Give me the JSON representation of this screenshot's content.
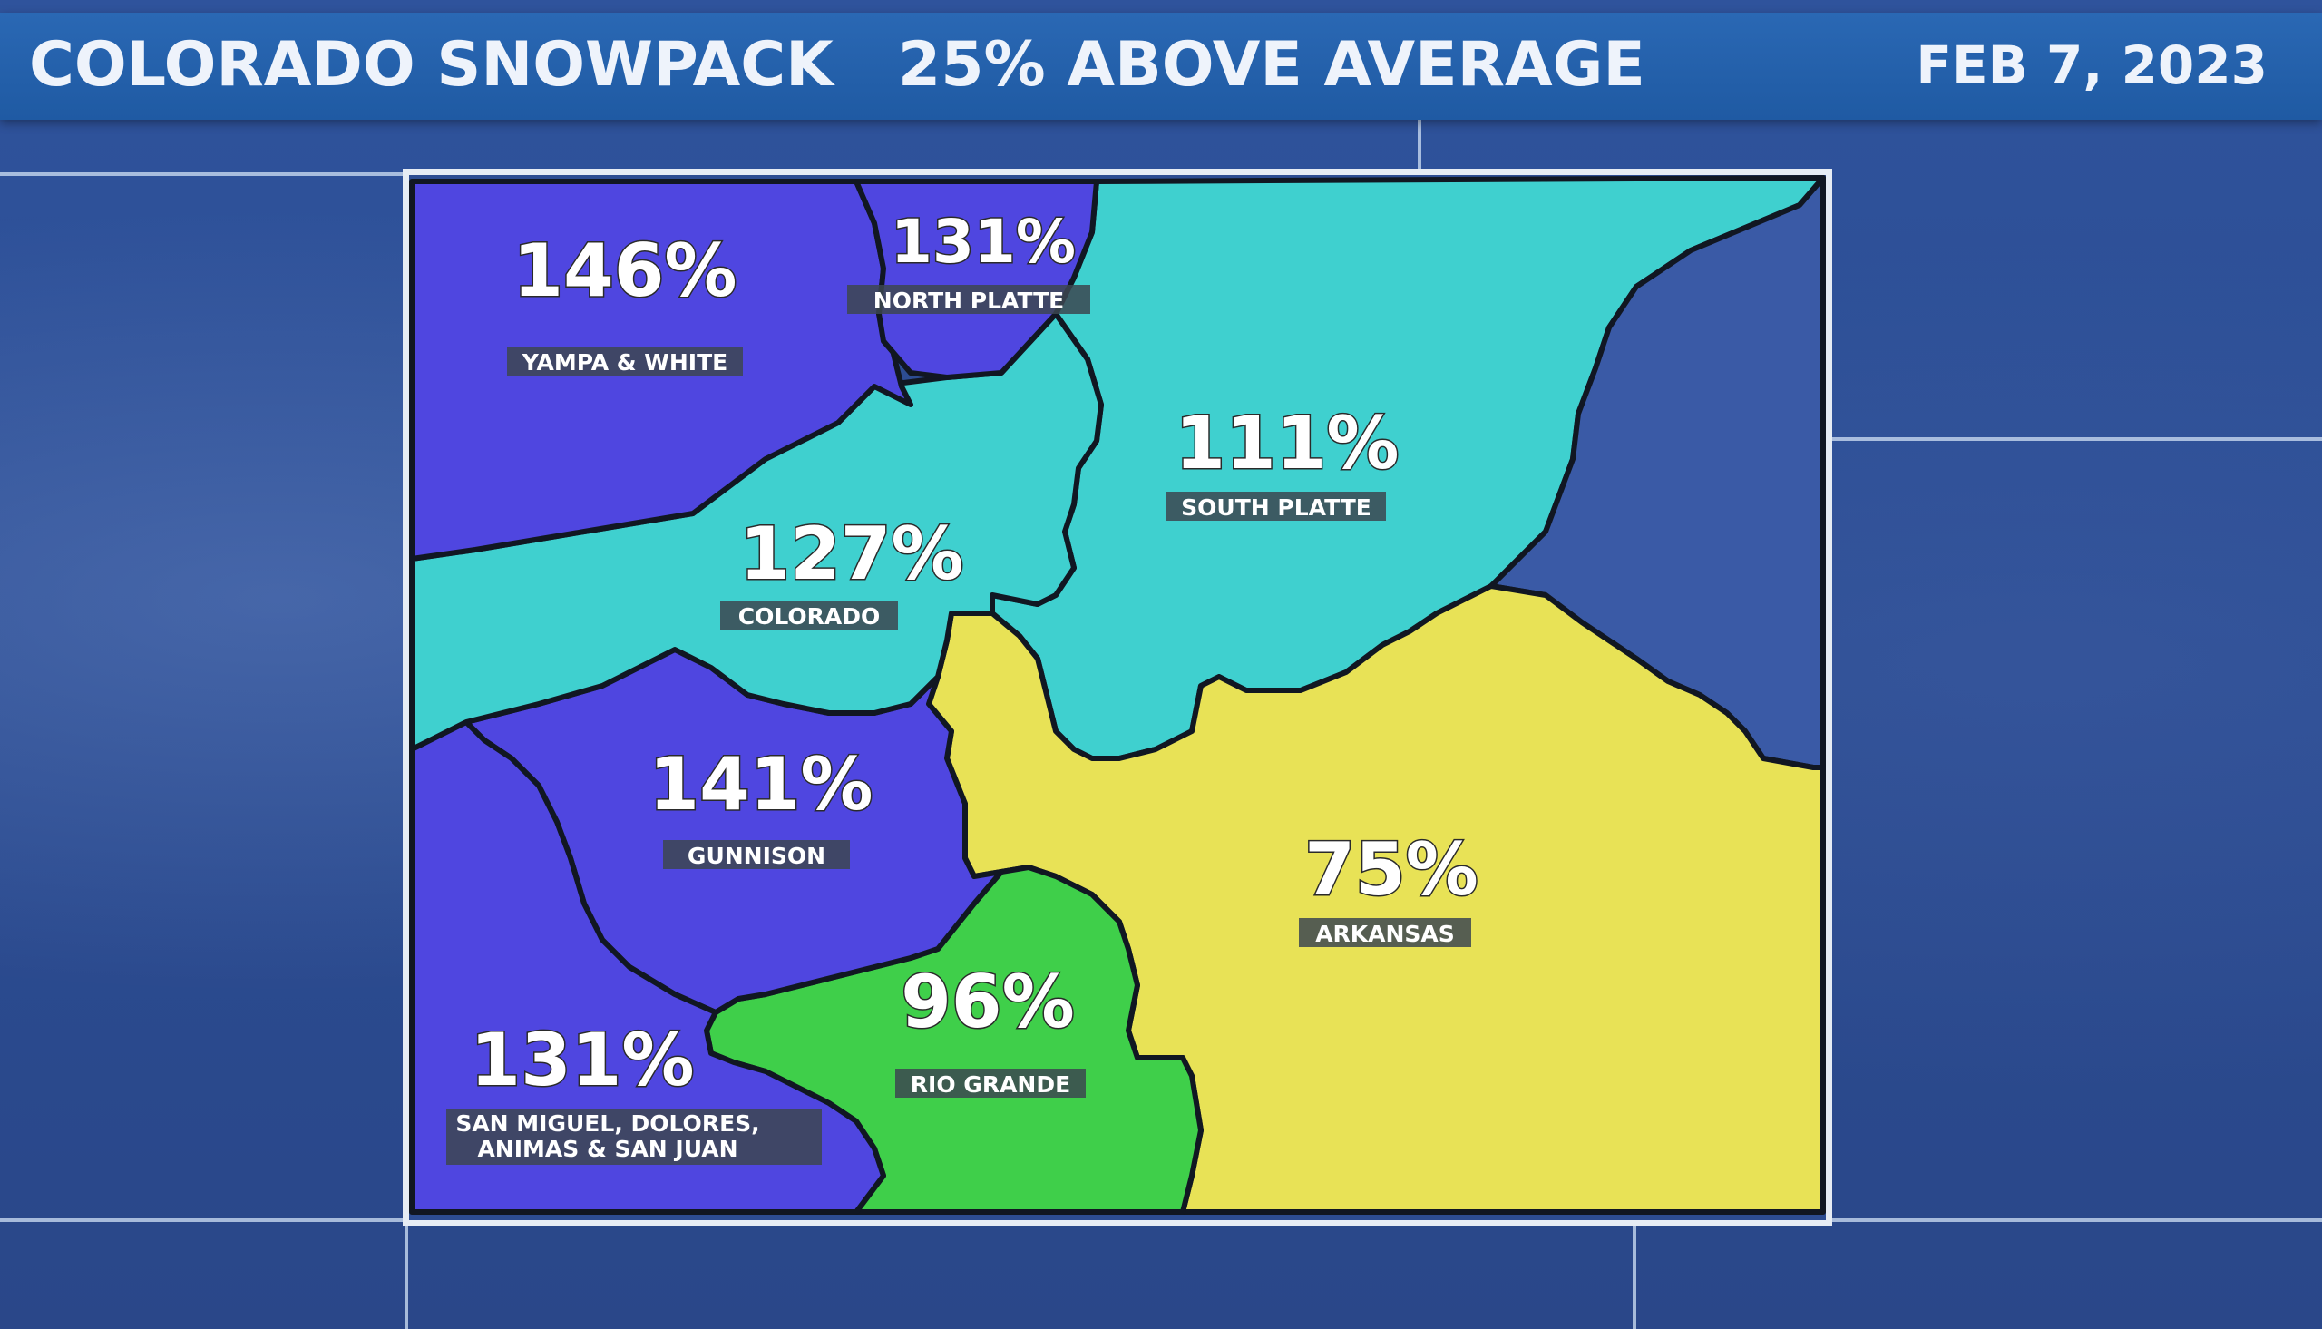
{
  "header": {
    "title": "COLORADO SNOWPACK   25% ABOVE AVERAGE",
    "date": "FEB 7, 2023"
  },
  "colors": {
    "header": "#1f5aa3",
    "background": "#2a4a8e",
    "deep_blue_region": "#4f46e0",
    "cyan_region": "#3fd0cf",
    "yellow_region": "#e8e256",
    "green_region": "#3fcf4a",
    "border": "#111722"
  },
  "basins": [
    {
      "id": "yampa",
      "name": "YAMPA & WHITE",
      "percent": "146%"
    },
    {
      "id": "north_platte",
      "name": "NORTH PLATTE",
      "percent": "131%"
    },
    {
      "id": "south_platte",
      "name": "SOUTH PLATTE",
      "percent": "111%"
    },
    {
      "id": "colorado",
      "name": "COLORADO",
      "percent": "127%"
    },
    {
      "id": "gunnison",
      "name": "GUNNISON",
      "percent": "141%"
    },
    {
      "id": "arkansas",
      "name": "ARKANSAS",
      "percent": "75%"
    },
    {
      "id": "rio_grande",
      "name": "RIO GRANDE",
      "percent": "96%"
    },
    {
      "id": "san_miguel",
      "name_line1": "SAN MIGUEL, DOLORES,",
      "name_line2": "ANIMAS & SAN JUAN",
      "percent": "131%"
    }
  ]
}
